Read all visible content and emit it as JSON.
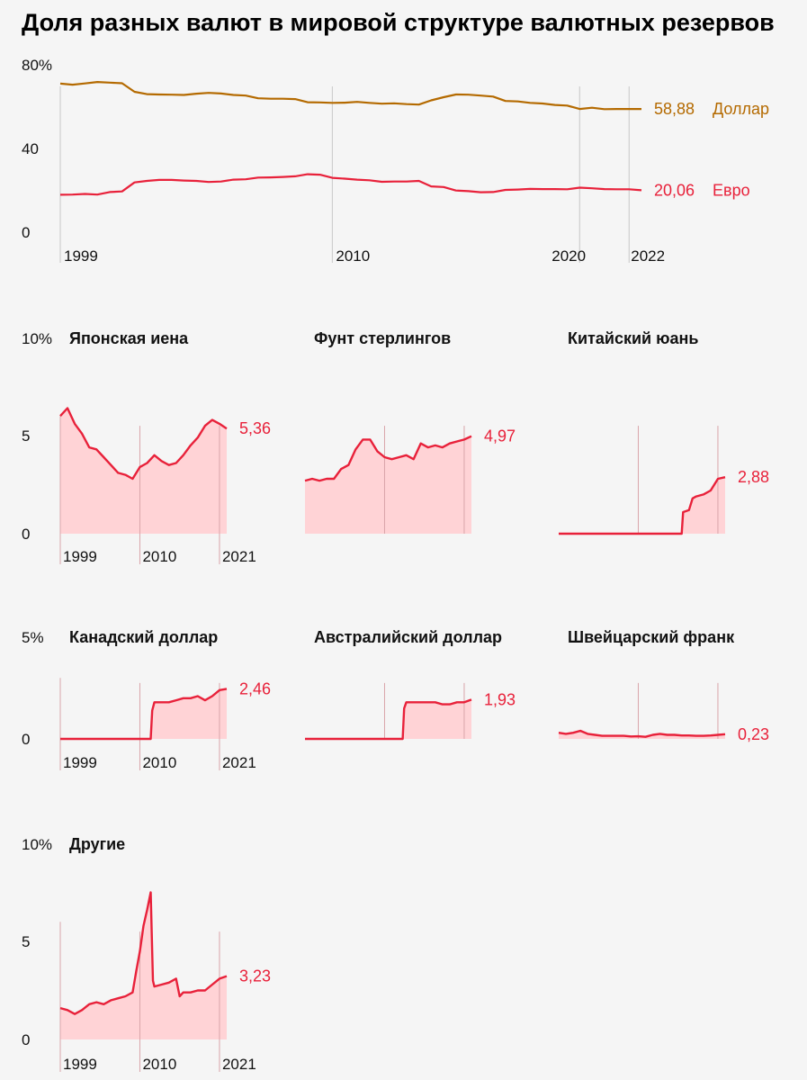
{
  "title": "Доля разных валют в мировой структуре валютных резервов",
  "colors": {
    "dollar": "#b46a00",
    "euro": "#e8213a",
    "accent": "#e8213a",
    "fill": "#ffd3d6",
    "grid": "#c8c8c8"
  },
  "chart_data": [
    {
      "id": "main",
      "type": "line",
      "title": "Доля разных валют в мировой структуре валютных резервов",
      "x_ticks": [
        "1999",
        "2010",
        "2020",
        "2022"
      ],
      "y_ticks": [
        "80%",
        "40",
        "0"
      ],
      "y_tick_values": [
        80,
        40,
        0
      ],
      "ylim": [
        0,
        80
      ],
      "xlim": [
        1999,
        2022.5
      ],
      "series": [
        {
          "name": "Доллар",
          "value_label": "58,88",
          "color": "#b46a00",
          "x": [
            1999,
            1999.5,
            2000,
            2000.5,
            2001,
            2001.5,
            2002,
            2002.5,
            2003,
            2003.5,
            2004,
            2004.5,
            2005,
            2005.5,
            2006,
            2006.5,
            2007,
            2007.5,
            2008,
            2008.5,
            2009,
            2009.5,
            2010,
            2010.5,
            2011,
            2011.5,
            2012,
            2012.5,
            2013,
            2013.5,
            2014,
            2014.5,
            2015,
            2015.5,
            2016,
            2016.5,
            2017,
            2017.5,
            2018,
            2018.5,
            2019,
            2019.5,
            2020,
            2020.5,
            2021,
            2021.5,
            2022,
            2022.5
          ],
          "values": [
            71,
            70.5,
            71.1,
            71.8,
            71.5,
            71.2,
            67.1,
            66,
            65.8,
            65.7,
            65.6,
            66.2,
            66.6,
            66.3,
            65.6,
            65.3,
            64,
            63.8,
            63.8,
            63.6,
            62.1,
            62,
            61.8,
            61.9,
            62.3,
            61.8,
            61.4,
            61.6,
            61.2,
            61,
            63,
            64.5,
            65.8,
            65.7,
            65.3,
            64.8,
            62.7,
            62.5,
            61.8,
            61.5,
            60.8,
            60.5,
            58.9,
            59.5,
            58.8,
            58.9,
            58.9,
            58.88
          ]
        },
        {
          "name": "Евро",
          "value_label": "20,06",
          "color": "#e8213a",
          "x": [
            1999,
            1999.5,
            2000,
            2000.5,
            2001,
            2001.5,
            2002,
            2002.5,
            2003,
            2003.5,
            2004,
            2004.5,
            2005,
            2005.5,
            2006,
            2006.5,
            2007,
            2007.5,
            2008,
            2008.5,
            2009,
            2009.5,
            2010,
            2010.5,
            2011,
            2011.5,
            2012,
            2012.5,
            2013,
            2013.5,
            2014,
            2014.5,
            2015,
            2015.5,
            2016,
            2016.5,
            2017,
            2017.5,
            2018,
            2018.5,
            2019,
            2019.5,
            2020,
            2020.5,
            2021,
            2021.5,
            2022,
            2022.5
          ],
          "values": [
            17.9,
            18,
            18.3,
            18,
            19.2,
            19.5,
            23.8,
            24.5,
            25,
            25,
            24.7,
            24.5,
            24,
            24.2,
            25.1,
            25.3,
            26.1,
            26.2,
            26.4,
            26.7,
            27.7,
            27.5,
            26,
            25.6,
            25.1,
            24.8,
            24.1,
            24.2,
            24.2,
            24.5,
            21.9,
            21.6,
            19.9,
            19.6,
            19.1,
            19.2,
            20.2,
            20.4,
            20.7,
            20.6,
            20.6,
            20.5,
            21.3,
            21,
            20.6,
            20.5,
            20.5,
            20.06
          ]
        }
      ]
    },
    {
      "id": "jpy",
      "type": "area",
      "title": "Японская иена",
      "value_label": "5,36",
      "y_ticks": [
        "10%",
        "5",
        "0"
      ],
      "y_tick_values": [
        10,
        5,
        0
      ],
      "ylim": [
        0,
        10
      ],
      "x_ticks": [
        "1999",
        "2010",
        "2021"
      ],
      "x": [
        1999,
        2000,
        2001,
        2002,
        2003,
        2004,
        2005,
        2006,
        2007,
        2008,
        2009,
        2010,
        2011,
        2012,
        2013,
        2014,
        2015,
        2016,
        2017,
        2018,
        2019,
        2020,
        2021,
        2022
      ],
      "values": [
        6.0,
        6.4,
        5.6,
        5.1,
        4.4,
        4.3,
        3.9,
        3.5,
        3.1,
        3.0,
        2.8,
        3.4,
        3.6,
        4.0,
        3.7,
        3.5,
        3.6,
        4.0,
        4.5,
        4.9,
        5.5,
        5.8,
        5.6,
        5.36
      ]
    },
    {
      "id": "gbp",
      "type": "area",
      "title": "Фунт стерлингов",
      "value_label": "4,97",
      "ylim": [
        0,
        10
      ],
      "x": [
        1999,
        2000,
        2001,
        2002,
        2003,
        2004,
        2005,
        2006,
        2007,
        2008,
        2009,
        2010,
        2011,
        2012,
        2013,
        2014,
        2015,
        2016,
        2017,
        2018,
        2019,
        2020,
        2021,
        2022
      ],
      "values": [
        2.7,
        2.8,
        2.7,
        2.8,
        2.8,
        3.3,
        3.5,
        4.3,
        4.8,
        4.8,
        4.2,
        3.9,
        3.8,
        3.9,
        4.0,
        3.8,
        4.6,
        4.4,
        4.5,
        4.4,
        4.6,
        4.7,
        4.8,
        4.97
      ]
    },
    {
      "id": "cny",
      "type": "area",
      "title": "Китайский юань",
      "value_label": "2,88",
      "ylim": [
        0,
        10
      ],
      "x": [
        1999,
        2016,
        2016.2,
        2017,
        2017.5,
        2018,
        2019,
        2020,
        2021,
        2022
      ],
      "values": [
        0,
        0,
        1.1,
        1.2,
        1.8,
        1.9,
        2.0,
        2.2,
        2.8,
        2.88
      ]
    },
    {
      "id": "cad",
      "type": "area",
      "title": "Канадский доллар",
      "value_label": "2,46",
      "y_ticks": [
        "5%",
        "0"
      ],
      "y_tick_values": [
        5,
        0
      ],
      "ylim": [
        0,
        5
      ],
      "x_ticks": [
        "1999",
        "2010",
        "2021"
      ],
      "x": [
        1999,
        2011.5,
        2011.7,
        2012,
        2013,
        2014,
        2015,
        2016,
        2017,
        2018,
        2019,
        2020,
        2021,
        2022
      ],
      "values": [
        0,
        0,
        1.4,
        1.8,
        1.8,
        1.8,
        1.9,
        2.0,
        2.0,
        2.1,
        1.9,
        2.1,
        2.4,
        2.46
      ]
    },
    {
      "id": "aud",
      "type": "area",
      "title": "Австралийский доллар",
      "value_label": "1,93",
      "ylim": [
        0,
        5
      ],
      "x": [
        1999,
        2012.5,
        2012.7,
        2013,
        2014,
        2015,
        2016,
        2017,
        2018,
        2019,
        2020,
        2021,
        2022
      ],
      "values": [
        0,
        0,
        1.5,
        1.8,
        1.8,
        1.8,
        1.8,
        1.8,
        1.7,
        1.7,
        1.8,
        1.8,
        1.93
      ]
    },
    {
      "id": "chf",
      "type": "area",
      "title": "Швейцарский франк",
      "value_label": "0,23",
      "ylim": [
        0,
        5
      ],
      "x": [
        1999,
        2000,
        2001,
        2002,
        2003,
        2004,
        2005,
        2006,
        2007,
        2008,
        2009,
        2010,
        2011,
        2012,
        2013,
        2014,
        2015,
        2016,
        2017,
        2018,
        2019,
        2020,
        2021,
        2022
      ],
      "values": [
        0.3,
        0.25,
        0.3,
        0.4,
        0.25,
        0.2,
        0.15,
        0.15,
        0.15,
        0.15,
        0.12,
        0.13,
        0.1,
        0.2,
        0.25,
        0.2,
        0.2,
        0.17,
        0.17,
        0.15,
        0.15,
        0.17,
        0.2,
        0.23
      ]
    },
    {
      "id": "other",
      "type": "area",
      "title": "Другие",
      "value_label": "3,23",
      "y_ticks": [
        "10%",
        "5",
        "0"
      ],
      "y_tick_values": [
        10,
        5,
        0
      ],
      "ylim": [
        0,
        10
      ],
      "x_ticks": [
        "1999",
        "2010",
        "2021"
      ],
      "x": [
        1999,
        2000,
        2001,
        2002,
        2003,
        2004,
        2005,
        2006,
        2007,
        2008,
        2009,
        2009.5,
        2010,
        2010.5,
        2011,
        2011.5,
        2011.8,
        2012,
        2013,
        2014,
        2015,
        2015.5,
        2016,
        2017,
        2018,
        2019,
        2020,
        2021,
        2022
      ],
      "values": [
        1.6,
        1.5,
        1.3,
        1.5,
        1.8,
        1.9,
        1.8,
        2.0,
        2.1,
        2.2,
        2.4,
        3.5,
        4.5,
        5.8,
        6.6,
        7.5,
        3.0,
        2.7,
        2.8,
        2.9,
        3.1,
        2.2,
        2.4,
        2.4,
        2.5,
        2.5,
        2.8,
        3.1,
        3.23
      ]
    }
  ]
}
